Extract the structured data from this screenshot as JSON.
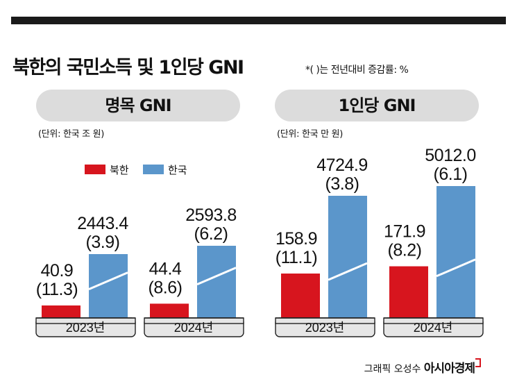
{
  "header": {
    "title": "북한의 국민소득 및 1인당 GNI",
    "note": "*( )는 전년대비 증감률: %"
  },
  "panels": [
    {
      "pill": "명목 GNI",
      "unit": "(단위: 한국 조 원)"
    },
    {
      "pill": "1인당 GNI",
      "unit": "(단위: 한국 만 원)"
    }
  ],
  "legend": {
    "north": "북한",
    "south": "한국"
  },
  "colors": {
    "north": "#d7151e",
    "south": "#5b96cb",
    "pill": "#dcdcdc",
    "year_box": "#e6e6e6"
  },
  "credit": {
    "label": "그래픽 오성수",
    "brand": "아시아경제"
  },
  "chart_data": [
    {
      "type": "bar",
      "title": "명목 GNI",
      "unit": "(단위: 한국 조 원)",
      "categories": [
        "2023년",
        "2024년"
      ],
      "series": [
        {
          "name": "북한",
          "values": [
            40.9,
            44.4
          ],
          "labels": [
            "40.9",
            "44.4"
          ],
          "changes": [
            "(11.3)",
            "(8.6)"
          ]
        },
        {
          "name": "한국",
          "values": [
            2443.4,
            2593.8
          ],
          "labels": [
            "2443.4",
            "2593.8"
          ],
          "changes": [
            "(3.9)",
            "(6.2)"
          ]
        }
      ],
      "axis_break_on": "한국"
    },
    {
      "type": "bar",
      "title": "1인당 GNI",
      "unit": "(단위: 한국 만 원)",
      "categories": [
        "2023년",
        "2024년"
      ],
      "series": [
        {
          "name": "북한",
          "values": [
            158.9,
            171.9
          ],
          "labels": [
            "158.9",
            "171.9"
          ],
          "changes": [
            "(11.1)",
            "(8.2)"
          ]
        },
        {
          "name": "한국",
          "values": [
            4724.9,
            5012.0
          ],
          "labels": [
            "4724.9",
            "5012.0"
          ],
          "changes": [
            "(3.8)",
            "(6.1)"
          ]
        }
      ],
      "axis_break_on": "한국"
    }
  ]
}
